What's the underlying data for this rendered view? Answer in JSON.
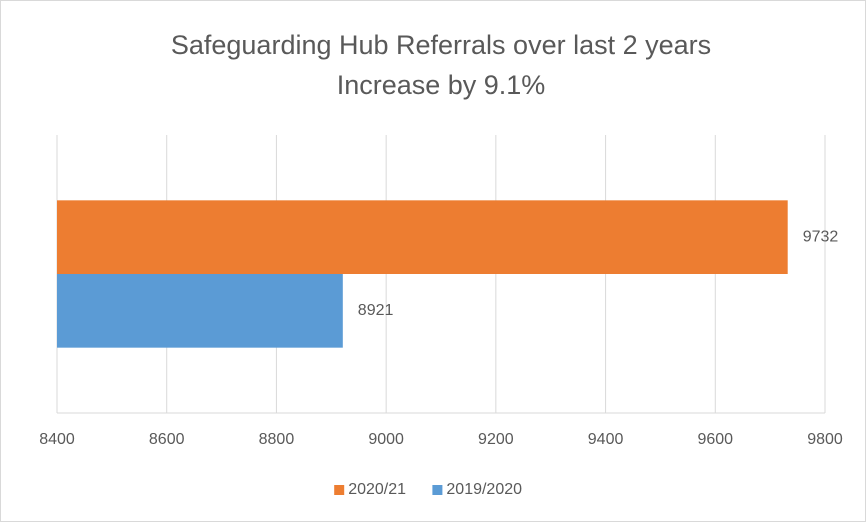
{
  "chart_data": {
    "type": "hbar",
    "title": "Safeguarding Hub Referrals over last 2 years",
    "subtitle": "Increase by 9.1%",
    "categories": [
      null
    ],
    "series": [
      {
        "name": "2020/21",
        "color": "#ed7d31",
        "values": [
          9732
        ]
      },
      {
        "name": "2019/2020",
        "color": "#5b9bd5",
        "values": [
          8921
        ]
      }
    ],
    "xlim": [
      8400,
      9800
    ],
    "xticks": [
      8400,
      8600,
      8800,
      9000,
      9200,
      9400,
      9600,
      9800
    ],
    "grid": true,
    "legend": "bottom"
  }
}
